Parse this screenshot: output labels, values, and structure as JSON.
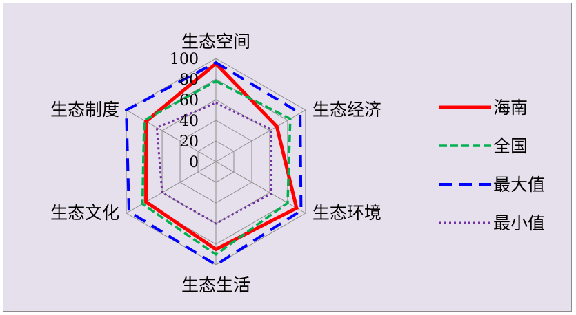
{
  "chart_data": {
    "type": "radar",
    "axes": [
      "生态空间",
      "生态经济",
      "生态环境",
      "生态生活",
      "生态文化",
      "生态制度"
    ],
    "rlim": [
      0,
      100
    ],
    "ticks": [
      "0",
      "20",
      "40",
      "60",
      "80",
      "100"
    ],
    "grid": true,
    "legend_position": "right",
    "series": [
      {
        "name": "海南",
        "values": [
          95,
          68,
          90,
          85,
          78,
          78
        ],
        "color": "#ff0000",
        "style": "solid"
      },
      {
        "name": "全国",
        "values": [
          78,
          83,
          80,
          90,
          82,
          80
        ],
        "color": "#00b050",
        "style": "dash"
      },
      {
        "name": "最大值",
        "values": [
          96,
          94,
          95,
          100,
          97,
          100
        ],
        "color": "#0000ff",
        "style": "longdash"
      },
      {
        "name": "最小值",
        "values": [
          57,
          62,
          62,
          60,
          60,
          66
        ],
        "color": "#7030a0",
        "style": "dot"
      }
    ]
  }
}
